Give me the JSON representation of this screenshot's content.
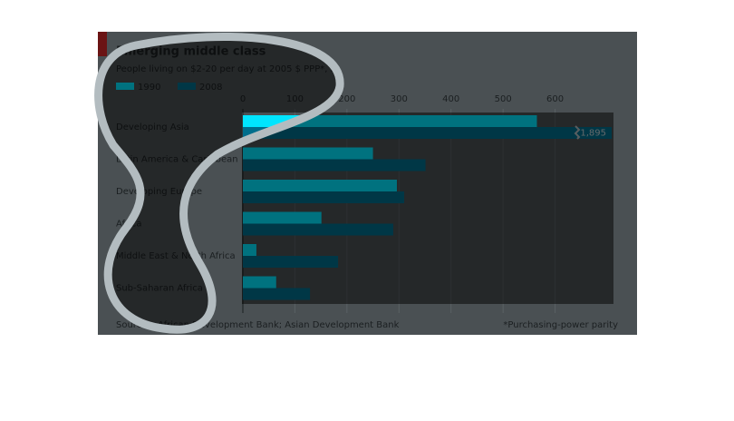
{
  "chart_data": {
    "type": "hbar",
    "title": "Emerging middle class",
    "subtitle": "People living on $2-20 per day at 2005 $ PPP*, m",
    "categories": [
      "Developing Asia",
      "Latin America & Caribbean",
      "Developing Europe",
      "Africa",
      "Middle East & North Africa",
      "Sub-Saharan Africa"
    ],
    "series": [
      {
        "name": "1990",
        "color": "#00e5ff",
        "values": [
          565,
          250,
          296,
          151,
          26,
          64
        ]
      },
      {
        "name": "2008",
        "color": "#006e8c",
        "values": [
          1895,
          351,
          310,
          289,
          183,
          129
        ],
        "value_labels": [
          "1,895",
          null,
          null,
          null,
          null,
          null
        ]
      }
    ],
    "xlim": [
      0,
      700
    ],
    "xticks": [
      0,
      100,
      200,
      300,
      400,
      500,
      600
    ],
    "grid": true,
    "source": "Sources: African Development Bank; Asian Development Bank",
    "note": "*Purchasing-power parity"
  }
}
